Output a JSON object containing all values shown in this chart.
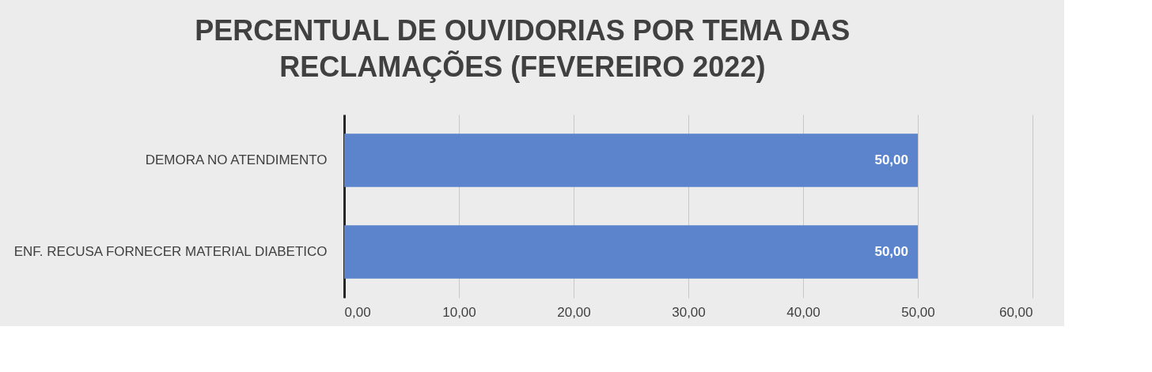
{
  "chart_data": {
    "type": "bar",
    "orientation": "horizontal",
    "title": "PERCENTUAL DE OUVIDORIAS POR TEMA DAS RECLAMAÇÕES (FEVEREIRO 2022)",
    "categories": [
      "DEMORA NO ATENDIMENTO",
      "ENF. RECUSA FORNECER MATERIAL DIABETICO"
    ],
    "values": [
      50,
      50
    ],
    "color": "#5b84cc",
    "value_labels": [
      "50,00",
      "50,00"
    ],
    "xlim": [
      0,
      60
    ],
    "xticks": [
      {
        "value": 0,
        "label": "0,00"
      },
      {
        "value": 10,
        "label": "10,00"
      },
      {
        "value": 20,
        "label": "20,00"
      },
      {
        "value": 30,
        "label": "30,00"
      },
      {
        "value": 40,
        "label": "40,00"
      },
      {
        "value": 50,
        "label": "50,00"
      },
      {
        "value": 60,
        "label": "60,00"
      }
    ],
    "grid": "x"
  }
}
